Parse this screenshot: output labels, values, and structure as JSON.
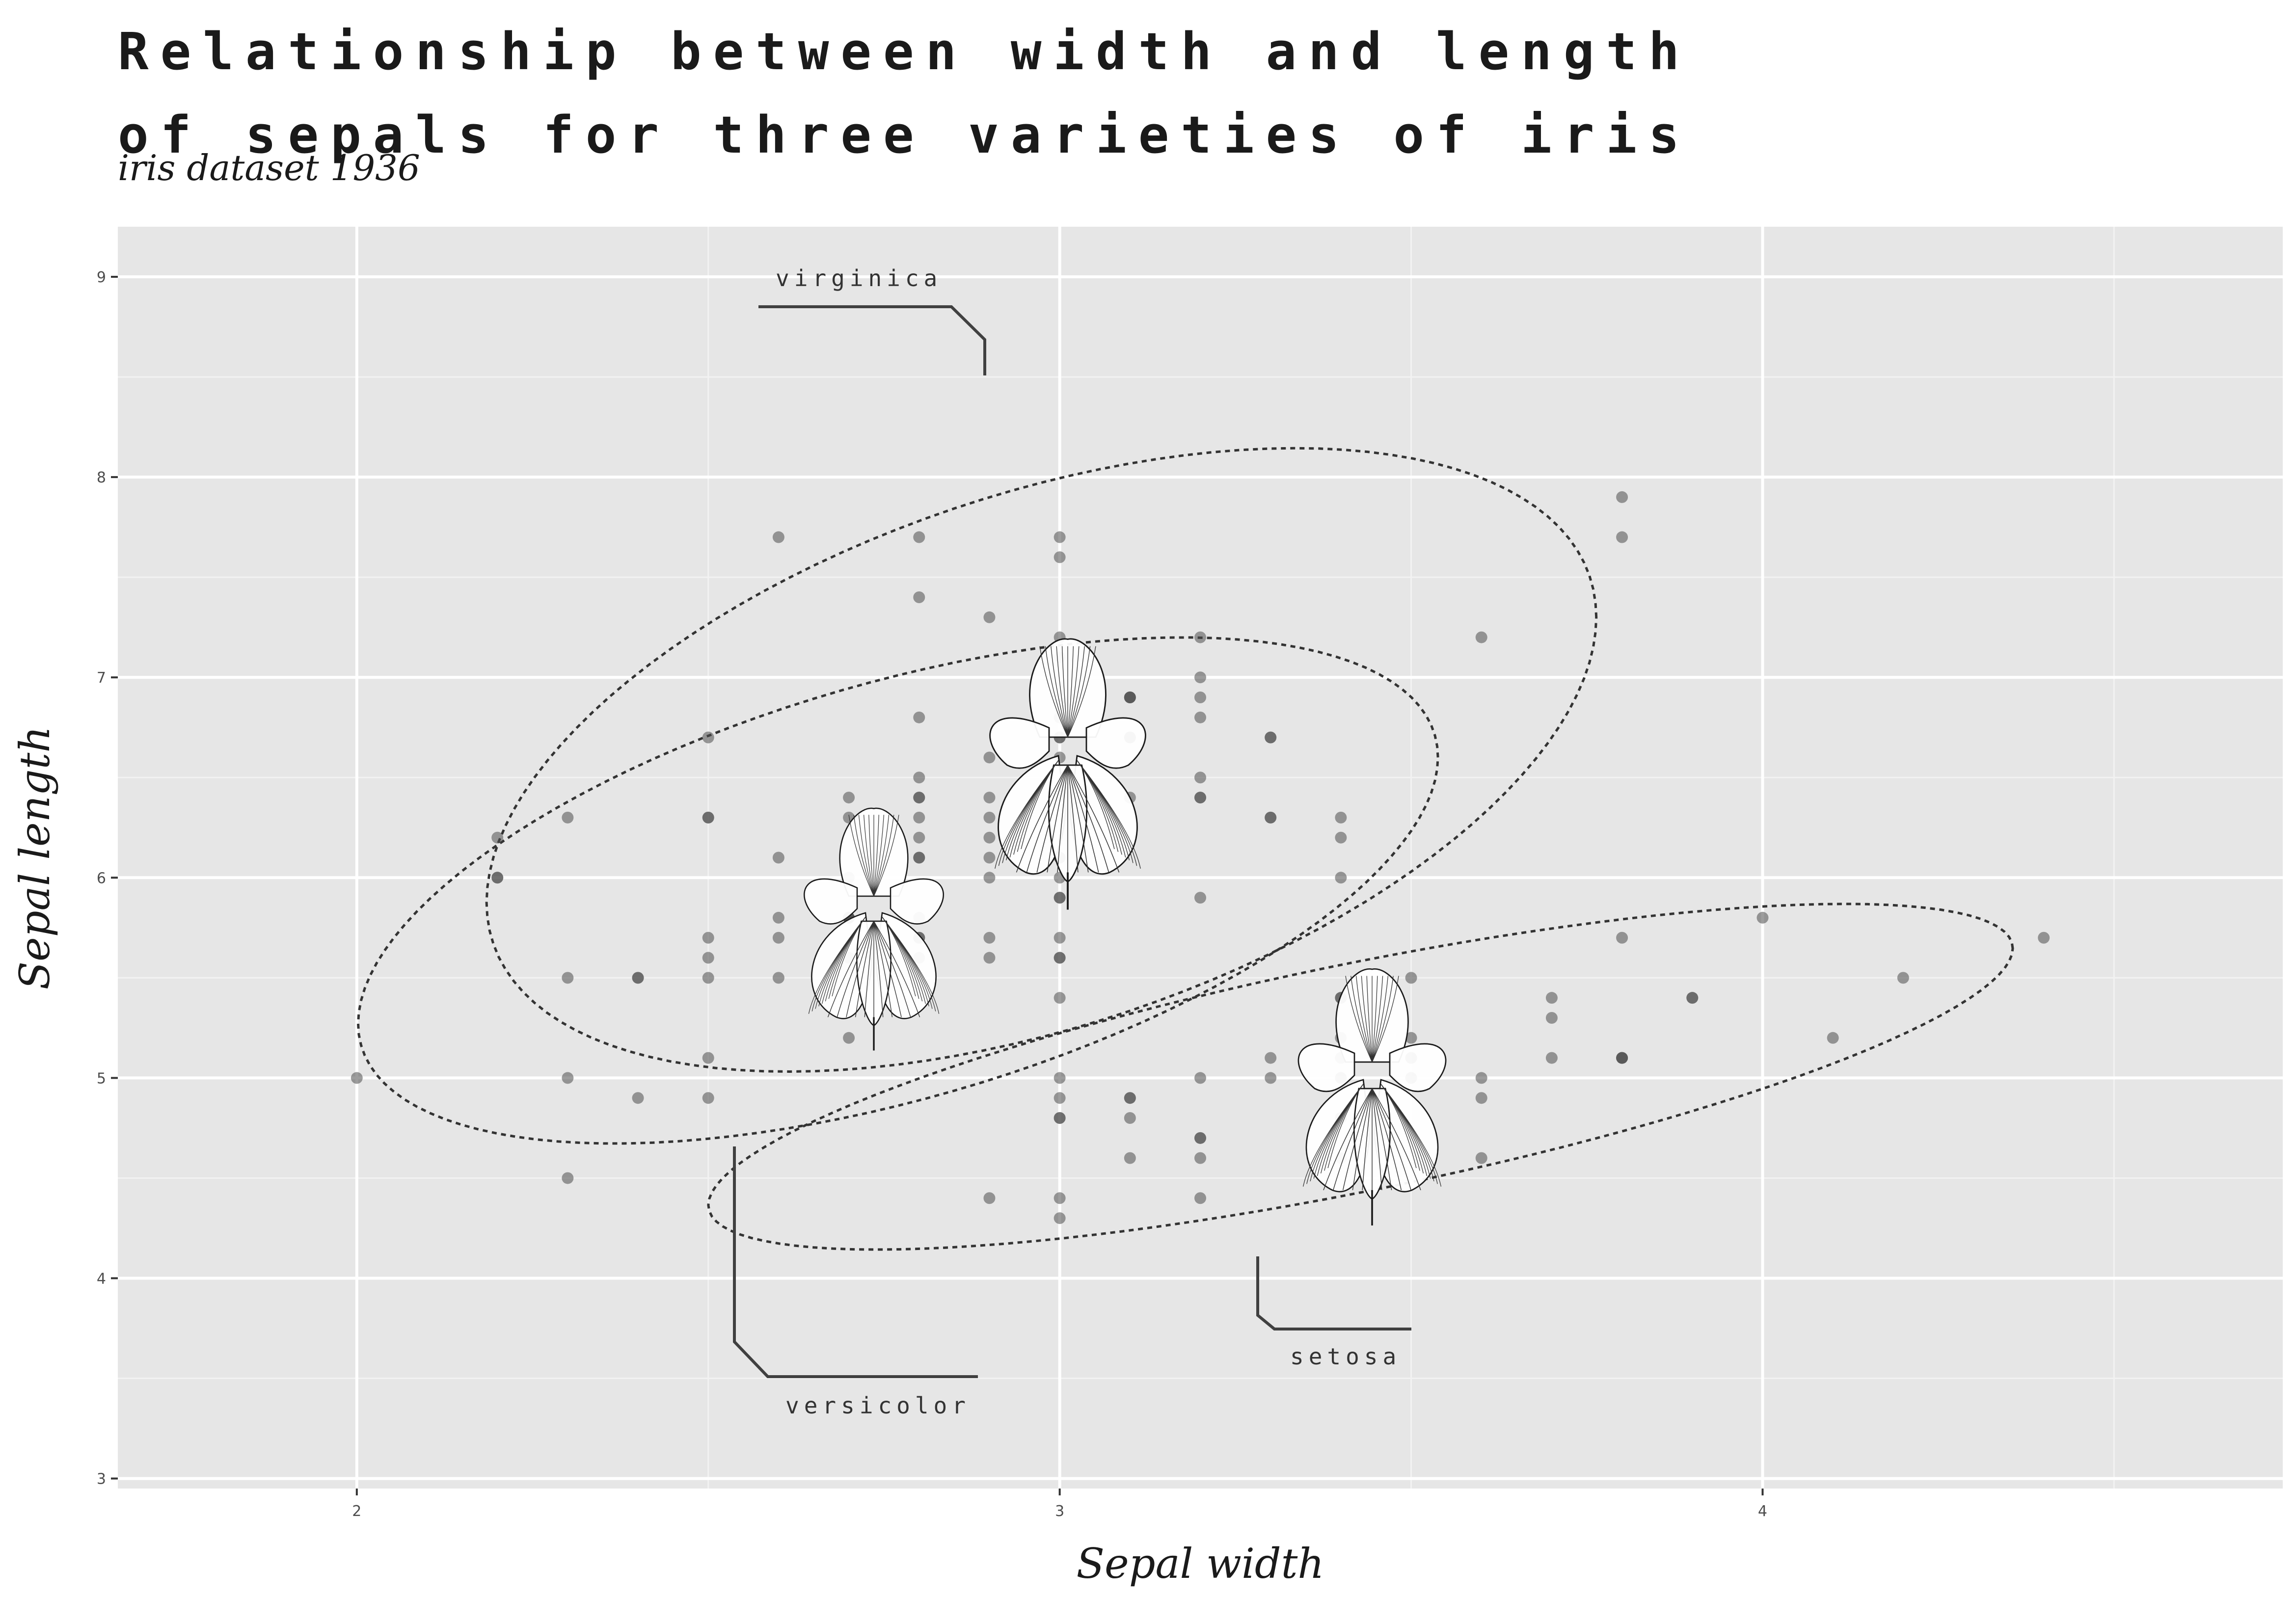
{
  "chart_data": {
    "type": "scatter",
    "title": "Relationship between width and length\nof sepals for three varieties of iris",
    "subtitle": "iris dataset 1936",
    "xlabel": "Sepal width",
    "ylabel": "Sepal length",
    "xlim": [
      1.66,
      4.74
    ],
    "ylim": [
      2.95,
      9.25
    ],
    "x_ticks": [
      2,
      3,
      4
    ],
    "y_ticks": [
      3,
      4,
      5,
      6,
      7,
      8,
      9
    ],
    "grid": true,
    "legend": "none",
    "series": [
      {
        "name": "setosa",
        "x": [
          3.5,
          3.0,
          3.2,
          3.1,
          3.6,
          3.9,
          3.4,
          3.4,
          2.9,
          3.1,
          3.7,
          3.4,
          3.0,
          3.0,
          4.0,
          4.4,
          3.9,
          3.5,
          3.8,
          3.8,
          3.4,
          3.7,
          3.6,
          3.3,
          3.4,
          3.0,
          3.4,
          3.5,
          3.4,
          3.2,
          3.1,
          3.4,
          4.1,
          4.2,
          3.1,
          3.2,
          3.5,
          3.6,
          3.0,
          3.4,
          3.5,
          2.3,
          3.2,
          3.5,
          3.8,
          3.0,
          3.8,
          3.2,
          3.7,
          3.3
        ],
        "y": [
          5.1,
          4.9,
          4.7,
          4.6,
          5.0,
          5.4,
          4.6,
          5.0,
          4.4,
          4.9,
          5.4,
          4.8,
          4.8,
          4.3,
          5.8,
          5.7,
          5.4,
          5.1,
          5.7,
          5.1,
          5.4,
          5.1,
          4.6,
          5.1,
          4.8,
          5.0,
          5.0,
          5.2,
          5.2,
          4.7,
          4.8,
          5.4,
          5.2,
          5.5,
          4.9,
          5.0,
          5.5,
          4.9,
          4.4,
          5.1,
          5.0,
          4.5,
          4.4,
          5.0,
          5.1,
          4.8,
          5.1,
          4.6,
          5.3,
          5.0
        ]
      },
      {
        "name": "versicolor",
        "x": [
          3.2,
          3.2,
          3.1,
          2.3,
          2.8,
          2.8,
          3.3,
          2.4,
          2.9,
          2.7,
          2.0,
          3.0,
          2.2,
          2.9,
          2.9,
          3.1,
          3.0,
          2.7,
          2.2,
          2.5,
          3.2,
          2.8,
          2.5,
          2.8,
          2.9,
          3.0,
          2.8,
          3.0,
          2.9,
          2.6,
          2.4,
          2.4,
          2.7,
          2.7,
          3.0,
          3.4,
          3.1,
          2.3,
          3.0,
          2.5,
          2.6,
          3.0,
          2.6,
          2.3,
          2.7,
          3.0,
          2.9,
          2.9,
          2.5,
          2.8
        ],
        "y": [
          7.0,
          6.4,
          6.9,
          5.5,
          6.5,
          5.7,
          6.3,
          4.9,
          6.6,
          5.2,
          5.0,
          5.9,
          6.0,
          6.1,
          5.6,
          6.7,
          5.6,
          5.8,
          6.2,
          5.6,
          5.9,
          6.1,
          6.3,
          6.1,
          6.4,
          6.6,
          6.8,
          6.7,
          6.0,
          5.7,
          5.5,
          5.5,
          5.8,
          6.0,
          5.4,
          6.0,
          6.7,
          6.3,
          5.6,
          5.5,
          5.5,
          6.1,
          5.8,
          5.0,
          5.6,
          5.7,
          5.7,
          6.2,
          5.1,
          5.7
        ]
      },
      {
        "name": "virginica",
        "x": [
          3.3,
          2.7,
          3.0,
          2.9,
          3.0,
          3.0,
          2.5,
          2.9,
          2.5,
          3.6,
          3.2,
          2.7,
          3.0,
          2.5,
          2.8,
          3.2,
          3.0,
          3.8,
          2.6,
          2.2,
          3.2,
          2.8,
          2.8,
          2.7,
          3.3,
          3.2,
          2.8,
          3.0,
          2.8,
          3.0,
          2.8,
          3.8,
          2.8,
          2.8,
          2.6,
          3.0,
          3.4,
          3.1,
          3.0,
          3.1,
          3.1,
          3.1,
          2.7,
          3.2,
          3.3,
          3.0,
          2.5,
          3.0,
          3.4,
          3.0
        ],
        "y": [
          6.3,
          5.8,
          7.1,
          6.3,
          6.5,
          7.6,
          4.9,
          7.3,
          6.7,
          7.2,
          6.5,
          6.4,
          6.8,
          5.7,
          5.8,
          6.4,
          6.5,
          7.7,
          7.7,
          6.0,
          6.9,
          5.6,
          7.7,
          6.3,
          6.7,
          7.2,
          6.2,
          6.1,
          6.4,
          7.2,
          7.4,
          7.9,
          6.4,
          6.3,
          6.1,
          7.7,
          6.3,
          6.4,
          6.0,
          6.9,
          6.7,
          6.9,
          5.8,
          6.8,
          6.7,
          6.7,
          6.3,
          6.5,
          6.2,
          5.9
        ]
      }
    ],
    "annotations": [
      "virginica",
      "versicolor",
      "setosa"
    ]
  }
}
